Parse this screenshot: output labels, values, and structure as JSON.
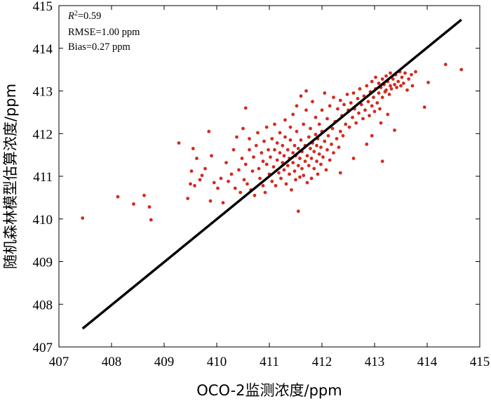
{
  "chart_data": {
    "type": "scatter",
    "xlabel": "OCO-2监测浓度/ppm",
    "ylabel": "随机森林模型估算浓度/ppm",
    "xlim": [
      407,
      415
    ],
    "ylim": [
      407,
      415
    ],
    "xticks": [
      "407",
      "408",
      "409",
      "410",
      "411",
      "412",
      "413",
      "414",
      "415"
    ],
    "yticks": [
      "407",
      "408",
      "409",
      "410",
      "411",
      "412",
      "413",
      "414",
      "415"
    ],
    "grid": false,
    "point_color": "#d42a1e",
    "fit_line": {
      "color": "#000000",
      "x": [
        407.45,
        414.65
      ],
      "y": [
        407.43,
        414.67
      ]
    },
    "stats": {
      "r2_symbol": "R",
      "r2_sup": "2",
      "r2_value": "=0.59",
      "rmse": "RMSE=1.00 ppm",
      "bias": "Bias=0.27 ppm"
    },
    "points": [
      [
        407.45,
        410.02
      ],
      [
        408.12,
        410.52
      ],
      [
        408.42,
        410.35
      ],
      [
        408.62,
        410.55
      ],
      [
        408.72,
        410.28
      ],
      [
        408.75,
        409.98
      ],
      [
        409.28,
        411.78
      ],
      [
        409.45,
        410.48
      ],
      [
        409.5,
        410.82
      ],
      [
        409.52,
        411.12
      ],
      [
        409.55,
        411.65
      ],
      [
        409.58,
        410.78
      ],
      [
        409.62,
        411.42
      ],
      [
        409.68,
        410.92
      ],
      [
        409.72,
        411.02
      ],
      [
        409.78,
        411.18
      ],
      [
        409.85,
        412.05
      ],
      [
        409.88,
        410.42
      ],
      [
        409.9,
        411.48
      ],
      [
        409.95,
        410.85
      ],
      [
        410.02,
        410.72
      ],
      [
        410.08,
        410.95
      ],
      [
        410.12,
        410.38
      ],
      [
        410.18,
        411.32
      ],
      [
        410.22,
        410.88
      ],
      [
        410.28,
        411.05
      ],
      [
        410.32,
        411.62
      ],
      [
        410.35,
        410.72
      ],
      [
        410.38,
        411.92
      ],
      [
        410.42,
        411.15
      ],
      [
        410.45,
        410.62
      ],
      [
        410.48,
        411.42
      ],
      [
        410.5,
        412.12
      ],
      [
        410.52,
        410.92
      ],
      [
        410.55,
        411.28
      ],
      [
        410.55,
        412.6
      ],
      [
        410.58,
        410.82
      ],
      [
        410.62,
        411.62
      ],
      [
        410.62,
        411.88
      ],
      [
        410.65,
        410.68
      ],
      [
        410.68,
        411.12
      ],
      [
        410.7,
        411.45
      ],
      [
        410.72,
        410.55
      ],
      [
        410.75,
        411.72
      ],
      [
        410.78,
        412.02
      ],
      [
        410.8,
        411.18
      ],
      [
        410.82,
        410.95
      ],
      [
        410.85,
        411.55
      ],
      [
        410.88,
        410.78
      ],
      [
        410.88,
        411.35
      ],
      [
        410.9,
        411.82
      ],
      [
        410.92,
        410.62
      ],
      [
        410.95,
        411.28
      ],
      [
        410.95,
        412.15
      ],
      [
        410.98,
        411.62
      ],
      [
        411.0,
        411.05
      ],
      [
        411.02,
        411.45
      ],
      [
        411.05,
        410.88
      ],
      [
        411.05,
        411.88
      ],
      [
        411.08,
        411.22
      ],
      [
        411.1,
        411.62
      ],
      [
        411.1,
        412.22
      ],
      [
        411.12,
        410.78
      ],
      [
        411.15,
        411.38
      ],
      [
        411.15,
        411.78
      ],
      [
        411.18,
        411.08
      ],
      [
        411.2,
        411.55
      ],
      [
        411.2,
        412.02
      ],
      [
        411.22,
        410.95
      ],
      [
        411.25,
        411.32
      ],
      [
        411.25,
        411.72
      ],
      [
        411.28,
        411.15
      ],
      [
        411.28,
        411.48
      ],
      [
        411.3,
        411.92
      ],
      [
        411.3,
        412.32
      ],
      [
        411.32,
        410.82
      ],
      [
        411.35,
        411.25
      ],
      [
        411.35,
        411.62
      ],
      [
        411.38,
        411.05
      ],
      [
        411.38,
        411.42
      ],
      [
        411.4,
        411.85
      ],
      [
        411.4,
        412.15
      ],
      [
        411.42,
        410.68
      ],
      [
        411.45,
        411.32
      ],
      [
        411.45,
        411.55
      ],
      [
        411.45,
        412.45
      ],
      [
        411.48,
        411.12
      ],
      [
        411.48,
        411.72
      ],
      [
        411.5,
        410.92
      ],
      [
        411.5,
        411.48
      ],
      [
        411.52,
        412.05
      ],
      [
        411.52,
        412.65
      ],
      [
        411.55,
        411.25
      ],
      [
        411.55,
        411.65
      ],
      [
        411.55,
        410.18
      ],
      [
        411.58,
        410.98
      ],
      [
        411.58,
        411.42
      ],
      [
        411.6,
        411.85
      ],
      [
        411.6,
        412.88
      ],
      [
        411.62,
        411.18
      ],
      [
        411.62,
        411.58
      ],
      [
        411.65,
        412.22
      ],
      [
        411.65,
        411.02
      ],
      [
        411.68,
        411.35
      ],
      [
        411.68,
        411.72
      ],
      [
        411.7,
        412.55
      ],
      [
        411.7,
        413.0
      ],
      [
        411.72,
        410.85
      ],
      [
        411.72,
        411.48
      ],
      [
        411.75,
        411.92
      ],
      [
        411.75,
        411.25
      ],
      [
        411.78,
        411.65
      ],
      [
        411.78,
        412.12
      ],
      [
        411.8,
        410.95
      ],
      [
        411.8,
        411.42
      ],
      [
        411.82,
        411.78
      ],
      [
        411.82,
        412.75
      ],
      [
        411.85,
        411.18
      ],
      [
        411.85,
        411.58
      ],
      [
        411.88,
        411.98
      ],
      [
        411.88,
        412.38
      ],
      [
        411.9,
        411.35
      ],
      [
        411.9,
        411.72
      ],
      [
        411.92,
        411.05
      ],
      [
        411.92,
        411.88
      ],
      [
        411.95,
        411.52
      ],
      [
        411.95,
        412.22
      ],
      [
        411.98,
        411.28
      ],
      [
        411.98,
        411.68
      ],
      [
        412.0,
        412.05
      ],
      [
        412.0,
        412.55
      ],
      [
        412.02,
        411.45
      ],
      [
        412.05,
        411.82
      ],
      [
        412.05,
        412.95
      ],
      [
        412.08,
        411.15
      ],
      [
        412.1,
        411.62
      ],
      [
        412.1,
        412.35
      ],
      [
        412.12,
        411.95
      ],
      [
        412.15,
        411.38
      ],
      [
        412.15,
        412.65
      ],
      [
        412.18,
        411.75
      ],
      [
        412.2,
        412.12
      ],
      [
        412.22,
        411.55
      ],
      [
        412.22,
        412.85
      ],
      [
        412.25,
        412.28
      ],
      [
        412.28,
        411.88
      ],
      [
        412.3,
        412.58
      ],
      [
        412.32,
        411.68
      ],
      [
        412.35,
        412.05
      ],
      [
        412.35,
        412.78
      ],
      [
        412.38,
        412.42
      ],
      [
        412.4,
        411.95
      ],
      [
        412.42,
        412.68
      ],
      [
        412.45,
        412.22
      ],
      [
        412.48,
        412.92
      ],
      [
        412.5,
        412.55
      ],
      [
        412.52,
        412.15
      ],
      [
        412.55,
        412.72
      ],
      [
        412.58,
        412.38
      ],
      [
        412.6,
        412.95
      ],
      [
        412.62,
        412.58
      ],
      [
        412.65,
        412.25
      ],
      [
        412.68,
        412.82
      ],
      [
        412.7,
        412.48
      ],
      [
        412.72,
        413.05
      ],
      [
        412.75,
        412.68
      ],
      [
        412.78,
        412.35
      ],
      [
        412.8,
        412.88
      ],
      [
        412.82,
        412.55
      ],
      [
        412.85,
        413.12
      ],
      [
        412.88,
        412.75
      ],
      [
        412.9,
        412.42
      ],
      [
        412.92,
        412.98
      ],
      [
        412.95,
        412.65
      ],
      [
        412.95,
        413.22
      ],
      [
        412.98,
        412.85
      ],
      [
        413.0,
        412.52
      ],
      [
        413.02,
        413.05
      ],
      [
        413.02,
        413.32
      ],
      [
        413.05,
        412.72
      ],
      [
        413.08,
        412.95
      ],
      [
        413.08,
        413.18
      ],
      [
        413.1,
        412.58
      ],
      [
        413.12,
        413.08
      ],
      [
        413.15,
        413.28
      ],
      [
        413.15,
        412.85
      ],
      [
        413.18,
        413.15
      ],
      [
        413.2,
        412.98
      ],
      [
        413.22,
        413.35
      ],
      [
        413.22,
        413.02
      ],
      [
        413.25,
        413.22
      ],
      [
        413.28,
        412.92
      ],
      [
        413.3,
        413.12
      ],
      [
        413.3,
        413.42
      ],
      [
        413.32,
        413.05
      ],
      [
        413.35,
        413.28
      ],
      [
        413.38,
        413.15
      ],
      [
        413.4,
        413.38
      ],
      [
        413.42,
        413.08
      ],
      [
        413.45,
        413.22
      ],
      [
        413.48,
        413.45
      ],
      [
        413.5,
        413.12
      ],
      [
        413.52,
        413.32
      ],
      [
        413.55,
        413.18
      ],
      [
        413.58,
        413.42
      ],
      [
        413.62,
        413.02
      ],
      [
        413.65,
        413.28
      ],
      [
        413.7,
        413.38
      ],
      [
        413.72,
        413.12
      ],
      [
        413.78,
        413.45
      ],
      [
        413.95,
        412.62
      ],
      [
        414.02,
        413.2
      ],
      [
        414.35,
        413.62
      ],
      [
        414.65,
        413.5
      ],
      [
        413.15,
        411.35
      ],
      [
        413.38,
        412.08
      ],
      [
        412.35,
        411.08
      ],
      [
        412.6,
        411.42
      ],
      [
        412.85,
        411.75
      ],
      [
        412.95,
        411.95
      ],
      [
        413.12,
        412.25
      ],
      [
        413.25,
        412.45
      ]
    ]
  }
}
